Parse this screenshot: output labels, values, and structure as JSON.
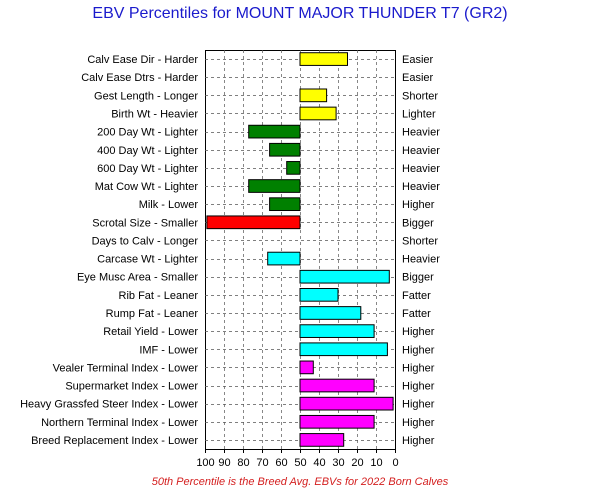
{
  "chart_data": {
    "type": "bar",
    "orientation": "horizontal",
    "title": "EBV Percentiles for MOUNT MAJOR THUNDER T7 (GR2)",
    "xlim": [
      100,
      0
    ],
    "xticks": [
      "100",
      "90",
      "80",
      "70",
      "60",
      "50",
      "40",
      "30",
      "20",
      "10",
      "0"
    ],
    "baseline": 50,
    "grid": true,
    "footnote": "50th Percentile is the Breed Avg. EBVs for 2022 Born Calves",
    "rows": [
      {
        "label": "Calv Ease Dir - Harder",
        "right": "Easier",
        "value": 25,
        "color": "#ffff00"
      },
      {
        "label": "Calv Ease Dtrs - Harder",
        "right": "Easier",
        "value": null,
        "color": "#ffff00"
      },
      {
        "label": "Gest Length - Longer",
        "right": "Shorter",
        "value": 36,
        "color": "#ffff00"
      },
      {
        "label": "Birth Wt - Heavier",
        "right": "Lighter",
        "value": 31,
        "color": "#ffff00"
      },
      {
        "label": "200 Day Wt - Lighter",
        "right": "Heavier",
        "value": 77,
        "color": "#008000"
      },
      {
        "label": "400 Day Wt - Lighter",
        "right": "Heavier",
        "value": 66,
        "color": "#008000"
      },
      {
        "label": "600 Day Wt - Lighter",
        "right": "Heavier",
        "value": 57,
        "color": "#008000"
      },
      {
        "label": "Mat Cow Wt - Lighter",
        "right": "Heavier",
        "value": 77,
        "color": "#008000"
      },
      {
        "label": "Milk - Lower",
        "right": "Higher",
        "value": 66,
        "color": "#008000"
      },
      {
        "label": "Scrotal Size - Smaller",
        "right": "Bigger",
        "value": 99,
        "color": "#ff0000"
      },
      {
        "label": "Days to Calv - Longer",
        "right": "Shorter",
        "value": null,
        "color": "#ff0000"
      },
      {
        "label": "Carcase Wt - Lighter",
        "right": "Heavier",
        "value": 67,
        "color": "#00ffff"
      },
      {
        "label": "Eye Musc Area - Smaller",
        "right": "Bigger",
        "value": 3,
        "color": "#00ffff"
      },
      {
        "label": "Rib Fat - Leaner",
        "right": "Fatter",
        "value": 30,
        "color": "#00ffff"
      },
      {
        "label": "Rump Fat - Leaner",
        "right": "Fatter",
        "value": 18,
        "color": "#00ffff"
      },
      {
        "label": "Retail Yield - Lower",
        "right": "Higher",
        "value": 11,
        "color": "#00ffff"
      },
      {
        "label": "IMF - Lower",
        "right": "Higher",
        "value": 4,
        "color": "#00ffff"
      },
      {
        "label": "Vealer Terminal Index - Lower",
        "right": "Higher",
        "value": 43,
        "color": "#ff00ff"
      },
      {
        "label": "Supermarket Index - Lower",
        "right": "Higher",
        "value": 11,
        "color": "#ff00ff"
      },
      {
        "label": "Heavy Grassfed Steer Index - Lower",
        "right": "Higher",
        "value": 1,
        "color": "#ff00ff"
      },
      {
        "label": "Northern Terminal Index - Lower",
        "right": "Higher",
        "value": 11,
        "color": "#ff00ff"
      },
      {
        "label": "Breed Replacement Index - Lower",
        "right": "Higher",
        "value": 27,
        "color": "#ff00ff"
      }
    ]
  }
}
